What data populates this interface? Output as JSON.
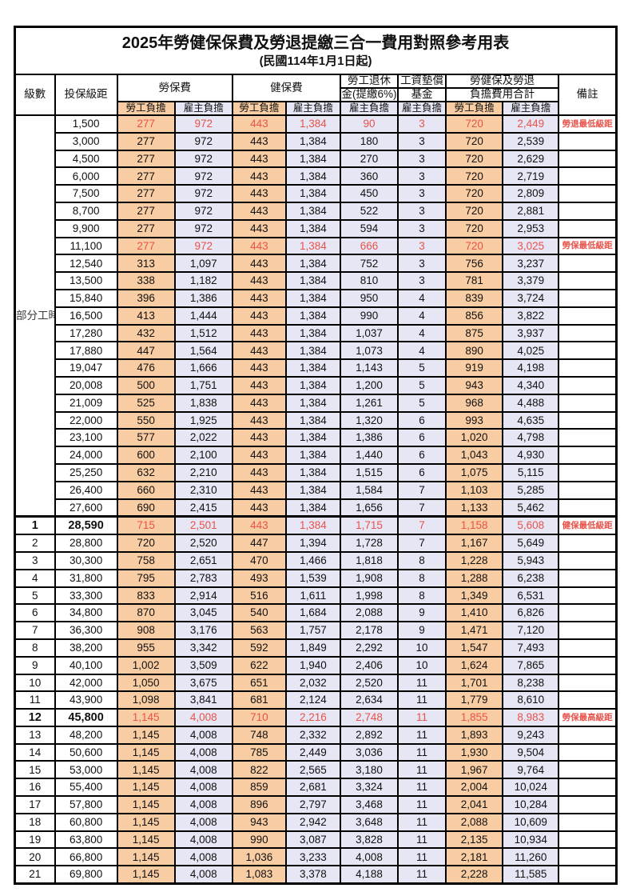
{
  "title": "2025年勞健保保費及勞退提繳三合一費用對照參考用表",
  "subtitle": "(民國114年1月1日起)",
  "colors": {
    "employee_share_bg": "#f9cda3",
    "employer_share_bg": "#e6e6f5",
    "highlight_text": "#e8534a",
    "border": "#000000"
  },
  "header": {
    "level": "級數",
    "bracket": "投保級距",
    "labor_insurance": "勞保費",
    "health_insurance": "健保費",
    "pension_line1": "勞工退休",
    "pension_line2": "金(提繳6%)",
    "wage_fund_line1": "工資墊償",
    "wage_fund_line2": "基金",
    "total_line1": "勞健保及勞退",
    "total_line2": "負擔費用合計",
    "remark": "備註",
    "employee_share": "勞工負擔",
    "employer_share": "雇主負擔"
  },
  "part_time_label": "部分工時",
  "part_time_row_span": 23,
  "rows": [
    {
      "level": "",
      "bracket": "1,500",
      "li_emp": "277",
      "li_er": "972",
      "hi_emp": "443",
      "hi_er": "1,384",
      "pension": "90",
      "fund": "3",
      "tot_emp": "720",
      "tot_er": "2,449",
      "remark": "勞退最低級距",
      "highlight": true,
      "bold": false
    },
    {
      "level": "",
      "bracket": "3,000",
      "li_emp": "277",
      "li_er": "972",
      "hi_emp": "443",
      "hi_er": "1,384",
      "pension": "180",
      "fund": "3",
      "tot_emp": "720",
      "tot_er": "2,539",
      "remark": "",
      "highlight": false,
      "bold": false
    },
    {
      "level": "",
      "bracket": "4,500",
      "li_emp": "277",
      "li_er": "972",
      "hi_emp": "443",
      "hi_er": "1,384",
      "pension": "270",
      "fund": "3",
      "tot_emp": "720",
      "tot_er": "2,629",
      "remark": "",
      "highlight": false,
      "bold": false
    },
    {
      "level": "",
      "bracket": "6,000",
      "li_emp": "277",
      "li_er": "972",
      "hi_emp": "443",
      "hi_er": "1,384",
      "pension": "360",
      "fund": "3",
      "tot_emp": "720",
      "tot_er": "2,719",
      "remark": "",
      "highlight": false,
      "bold": false
    },
    {
      "level": "",
      "bracket": "7,500",
      "li_emp": "277",
      "li_er": "972",
      "hi_emp": "443",
      "hi_er": "1,384",
      "pension": "450",
      "fund": "3",
      "tot_emp": "720",
      "tot_er": "2,809",
      "remark": "",
      "highlight": false,
      "bold": false
    },
    {
      "level": "",
      "bracket": "8,700",
      "li_emp": "277",
      "li_er": "972",
      "hi_emp": "443",
      "hi_er": "1,384",
      "pension": "522",
      "fund": "3",
      "tot_emp": "720",
      "tot_er": "2,881",
      "remark": "",
      "highlight": false,
      "bold": false
    },
    {
      "level": "",
      "bracket": "9,900",
      "li_emp": "277",
      "li_er": "972",
      "hi_emp": "443",
      "hi_er": "1,384",
      "pension": "594",
      "fund": "3",
      "tot_emp": "720",
      "tot_er": "2,953",
      "remark": "",
      "highlight": false,
      "bold": false
    },
    {
      "level": "",
      "bracket": "11,100",
      "li_emp": "277",
      "li_er": "972",
      "hi_emp": "443",
      "hi_er": "1,384",
      "pension": "666",
      "fund": "3",
      "tot_emp": "720",
      "tot_er": "3,025",
      "remark": "勞保最低級距",
      "highlight": true,
      "bold": false
    },
    {
      "level": "",
      "bracket": "12,540",
      "li_emp": "313",
      "li_er": "1,097",
      "hi_emp": "443",
      "hi_er": "1,384",
      "pension": "752",
      "fund": "3",
      "tot_emp": "756",
      "tot_er": "3,237",
      "remark": "",
      "highlight": false,
      "bold": false
    },
    {
      "level": "",
      "bracket": "13,500",
      "li_emp": "338",
      "li_er": "1,182",
      "hi_emp": "443",
      "hi_er": "1,384",
      "pension": "810",
      "fund": "3",
      "tot_emp": "781",
      "tot_er": "3,379",
      "remark": "",
      "highlight": false,
      "bold": false
    },
    {
      "level": "",
      "bracket": "15,840",
      "li_emp": "396",
      "li_er": "1,386",
      "hi_emp": "443",
      "hi_er": "1,384",
      "pension": "950",
      "fund": "4",
      "tot_emp": "839",
      "tot_er": "3,724",
      "remark": "",
      "highlight": false,
      "bold": false
    },
    {
      "level": "",
      "bracket": "16,500",
      "li_emp": "413",
      "li_er": "1,444",
      "hi_emp": "443",
      "hi_er": "1,384",
      "pension": "990",
      "fund": "4",
      "tot_emp": "856",
      "tot_er": "3,822",
      "remark": "",
      "highlight": false,
      "bold": false
    },
    {
      "level": "",
      "bracket": "17,280",
      "li_emp": "432",
      "li_er": "1,512",
      "hi_emp": "443",
      "hi_er": "1,384",
      "pension": "1,037",
      "fund": "4",
      "tot_emp": "875",
      "tot_er": "3,937",
      "remark": "",
      "highlight": false,
      "bold": false
    },
    {
      "level": "",
      "bracket": "17,880",
      "li_emp": "447",
      "li_er": "1,564",
      "hi_emp": "443",
      "hi_er": "1,384",
      "pension": "1,073",
      "fund": "4",
      "tot_emp": "890",
      "tot_er": "4,025",
      "remark": "",
      "highlight": false,
      "bold": false
    },
    {
      "level": "",
      "bracket": "19,047",
      "li_emp": "476",
      "li_er": "1,666",
      "hi_emp": "443",
      "hi_er": "1,384",
      "pension": "1,143",
      "fund": "5",
      "tot_emp": "919",
      "tot_er": "4,198",
      "remark": "",
      "highlight": false,
      "bold": false
    },
    {
      "level": "",
      "bracket": "20,008",
      "li_emp": "500",
      "li_er": "1,751",
      "hi_emp": "443",
      "hi_er": "1,384",
      "pension": "1,200",
      "fund": "5",
      "tot_emp": "943",
      "tot_er": "4,340",
      "remark": "",
      "highlight": false,
      "bold": false
    },
    {
      "level": "",
      "bracket": "21,009",
      "li_emp": "525",
      "li_er": "1,838",
      "hi_emp": "443",
      "hi_er": "1,384",
      "pension": "1,261",
      "fund": "5",
      "tot_emp": "968",
      "tot_er": "4,488",
      "remark": "",
      "highlight": false,
      "bold": false
    },
    {
      "level": "",
      "bracket": "22,000",
      "li_emp": "550",
      "li_er": "1,925",
      "hi_emp": "443",
      "hi_er": "1,384",
      "pension": "1,320",
      "fund": "6",
      "tot_emp": "993",
      "tot_er": "4,635",
      "remark": "",
      "highlight": false,
      "bold": false
    },
    {
      "level": "",
      "bracket": "23,100",
      "li_emp": "577",
      "li_er": "2,022",
      "hi_emp": "443",
      "hi_er": "1,384",
      "pension": "1,386",
      "fund": "6",
      "tot_emp": "1,020",
      "tot_er": "4,798",
      "remark": "",
      "highlight": false,
      "bold": false
    },
    {
      "level": "",
      "bracket": "24,000",
      "li_emp": "600",
      "li_er": "2,100",
      "hi_emp": "443",
      "hi_er": "1,384",
      "pension": "1,440",
      "fund": "6",
      "tot_emp": "1,043",
      "tot_er": "4,930",
      "remark": "",
      "highlight": false,
      "bold": false
    },
    {
      "level": "",
      "bracket": "25,250",
      "li_emp": "632",
      "li_er": "2,210",
      "hi_emp": "443",
      "hi_er": "1,384",
      "pension": "1,515",
      "fund": "6",
      "tot_emp": "1,075",
      "tot_er": "5,115",
      "remark": "",
      "highlight": false,
      "bold": false
    },
    {
      "level": "",
      "bracket": "26,400",
      "li_emp": "660",
      "li_er": "2,310",
      "hi_emp": "443",
      "hi_er": "1,384",
      "pension": "1,584",
      "fund": "7",
      "tot_emp": "1,103",
      "tot_er": "5,285",
      "remark": "",
      "highlight": false,
      "bold": false
    },
    {
      "level": "",
      "bracket": "27,600",
      "li_emp": "690",
      "li_er": "2,415",
      "hi_emp": "443",
      "hi_er": "1,384",
      "pension": "1,656",
      "fund": "7",
      "tot_emp": "1,133",
      "tot_er": "5,462",
      "remark": "",
      "highlight": false,
      "bold": false
    },
    {
      "level": "1",
      "bracket": "28,590",
      "li_emp": "715",
      "li_er": "2,501",
      "hi_emp": "443",
      "hi_er": "1,384",
      "pension": "1,715",
      "fund": "7",
      "tot_emp": "1,158",
      "tot_er": "5,608",
      "remark": "健保最低級距",
      "highlight": true,
      "bold": true,
      "section_start": true
    },
    {
      "level": "2",
      "bracket": "28,800",
      "li_emp": "720",
      "li_er": "2,520",
      "hi_emp": "447",
      "hi_er": "1,394",
      "pension": "1,728",
      "fund": "7",
      "tot_emp": "1,167",
      "tot_er": "5,649",
      "remark": "",
      "highlight": false,
      "bold": false
    },
    {
      "level": "3",
      "bracket": "30,300",
      "li_emp": "758",
      "li_er": "2,651",
      "hi_emp": "470",
      "hi_er": "1,466",
      "pension": "1,818",
      "fund": "8",
      "tot_emp": "1,228",
      "tot_er": "5,943",
      "remark": "",
      "highlight": false,
      "bold": false
    },
    {
      "level": "4",
      "bracket": "31,800",
      "li_emp": "795",
      "li_er": "2,783",
      "hi_emp": "493",
      "hi_er": "1,539",
      "pension": "1,908",
      "fund": "8",
      "tot_emp": "1,288",
      "tot_er": "6,238",
      "remark": "",
      "highlight": false,
      "bold": false
    },
    {
      "level": "5",
      "bracket": "33,300",
      "li_emp": "833",
      "li_er": "2,914",
      "hi_emp": "516",
      "hi_er": "1,611",
      "pension": "1,998",
      "fund": "8",
      "tot_emp": "1,349",
      "tot_er": "6,531",
      "remark": "",
      "highlight": false,
      "bold": false
    },
    {
      "level": "6",
      "bracket": "34,800",
      "li_emp": "870",
      "li_er": "3,045",
      "hi_emp": "540",
      "hi_er": "1,684",
      "pension": "2,088",
      "fund": "9",
      "tot_emp": "1,410",
      "tot_er": "6,826",
      "remark": "",
      "highlight": false,
      "bold": false
    },
    {
      "level": "7",
      "bracket": "36,300",
      "li_emp": "908",
      "li_er": "3,176",
      "hi_emp": "563",
      "hi_er": "1,757",
      "pension": "2,178",
      "fund": "9",
      "tot_emp": "1,471",
      "tot_er": "7,120",
      "remark": "",
      "highlight": false,
      "bold": false
    },
    {
      "level": "8",
      "bracket": "38,200",
      "li_emp": "955",
      "li_er": "3,342",
      "hi_emp": "592",
      "hi_er": "1,849",
      "pension": "2,292",
      "fund": "10",
      "tot_emp": "1,547",
      "tot_er": "7,493",
      "remark": "",
      "highlight": false,
      "bold": false
    },
    {
      "level": "9",
      "bracket": "40,100",
      "li_emp": "1,002",
      "li_er": "3,509",
      "hi_emp": "622",
      "hi_er": "1,940",
      "pension": "2,406",
      "fund": "10",
      "tot_emp": "1,624",
      "tot_er": "7,865",
      "remark": "",
      "highlight": false,
      "bold": false
    },
    {
      "level": "10",
      "bracket": "42,000",
      "li_emp": "1,050",
      "li_er": "3,675",
      "hi_emp": "651",
      "hi_er": "2,032",
      "pension": "2,520",
      "fund": "11",
      "tot_emp": "1,701",
      "tot_er": "8,238",
      "remark": "",
      "highlight": false,
      "bold": false
    },
    {
      "level": "11",
      "bracket": "43,900",
      "li_emp": "1,098",
      "li_er": "3,841",
      "hi_emp": "681",
      "hi_er": "2,124",
      "pension": "2,634",
      "fund": "11",
      "tot_emp": "1,779",
      "tot_er": "8,610",
      "remark": "",
      "highlight": false,
      "bold": false
    },
    {
      "level": "12",
      "bracket": "45,800",
      "li_emp": "1,145",
      "li_er": "4,008",
      "hi_emp": "710",
      "hi_er": "2,216",
      "pension": "2,748",
      "fund": "11",
      "tot_emp": "1,855",
      "tot_er": "8,983",
      "remark": "勞保最高級距",
      "highlight": true,
      "bold": true
    },
    {
      "level": "13",
      "bracket": "48,200",
      "li_emp": "1,145",
      "li_er": "4,008",
      "hi_emp": "748",
      "hi_er": "2,332",
      "pension": "2,892",
      "fund": "11",
      "tot_emp": "1,893",
      "tot_er": "9,243",
      "remark": "",
      "highlight": false,
      "bold": false
    },
    {
      "level": "14",
      "bracket": "50,600",
      "li_emp": "1,145",
      "li_er": "4,008",
      "hi_emp": "785",
      "hi_er": "2,449",
      "pension": "3,036",
      "fund": "11",
      "tot_emp": "1,930",
      "tot_er": "9,504",
      "remark": "",
      "highlight": false,
      "bold": false
    },
    {
      "level": "15",
      "bracket": "53,000",
      "li_emp": "1,145",
      "li_er": "4,008",
      "hi_emp": "822",
      "hi_er": "2,565",
      "pension": "3,180",
      "fund": "11",
      "tot_emp": "1,967",
      "tot_er": "9,764",
      "remark": "",
      "highlight": false,
      "bold": false
    },
    {
      "level": "16",
      "bracket": "55,400",
      "li_emp": "1,145",
      "li_er": "4,008",
      "hi_emp": "859",
      "hi_er": "2,681",
      "pension": "3,324",
      "fund": "11",
      "tot_emp": "2,004",
      "tot_er": "10,024",
      "remark": "",
      "highlight": false,
      "bold": false
    },
    {
      "level": "17",
      "bracket": "57,800",
      "li_emp": "1,145",
      "li_er": "4,008",
      "hi_emp": "896",
      "hi_er": "2,797",
      "pension": "3,468",
      "fund": "11",
      "tot_emp": "2,041",
      "tot_er": "10,284",
      "remark": "",
      "highlight": false,
      "bold": false
    },
    {
      "level": "18",
      "bracket": "60,800",
      "li_emp": "1,145",
      "li_er": "4,008",
      "hi_emp": "943",
      "hi_er": "2,942",
      "pension": "3,648",
      "fund": "11",
      "tot_emp": "2,088",
      "tot_er": "10,609",
      "remark": "",
      "highlight": false,
      "bold": false
    },
    {
      "level": "19",
      "bracket": "63,800",
      "li_emp": "1,145",
      "li_er": "4,008",
      "hi_emp": "990",
      "hi_er": "3,087",
      "pension": "3,828",
      "fund": "11",
      "tot_emp": "2,135",
      "tot_er": "10,934",
      "remark": "",
      "highlight": false,
      "bold": false
    },
    {
      "level": "20",
      "bracket": "66,800",
      "li_emp": "1,145",
      "li_er": "4,008",
      "hi_emp": "1,036",
      "hi_er": "3,233",
      "pension": "4,008",
      "fund": "11",
      "tot_emp": "2,181",
      "tot_er": "11,260",
      "remark": "",
      "highlight": false,
      "bold": false
    },
    {
      "level": "21",
      "bracket": "69,800",
      "li_emp": "1,145",
      "li_er": "4,008",
      "hi_emp": "1,083",
      "hi_er": "3,378",
      "pension": "4,188",
      "fund": "11",
      "tot_emp": "2,228",
      "tot_er": "11,585",
      "remark": "",
      "highlight": false,
      "bold": false
    }
  ]
}
